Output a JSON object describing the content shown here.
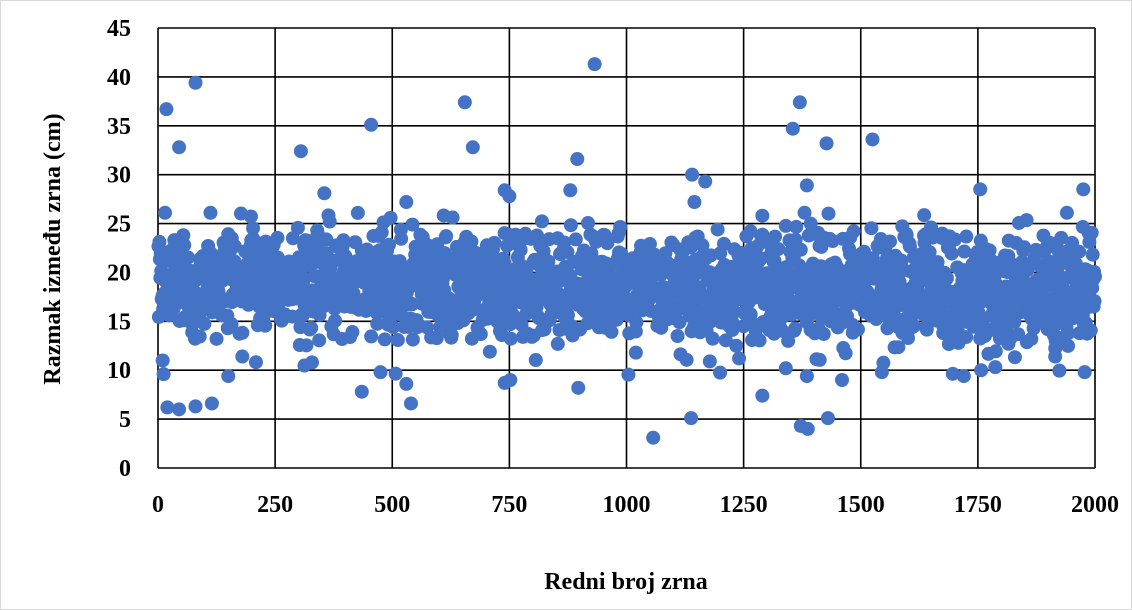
{
  "chart_data": {
    "type": "scatter",
    "title": "",
    "xlabel": "Redni broj zrna",
    "ylabel": "Razmak između zrna (cm)",
    "xlim": [
      0,
      2000
    ],
    "ylim": [
      0,
      45
    ],
    "x_ticks": [
      0,
      250,
      500,
      750,
      1000,
      1250,
      1500,
      1750,
      2000
    ],
    "y_ticks": [
      0,
      5,
      10,
      15,
      20,
      25,
      30,
      35,
      40,
      45
    ],
    "grid": true,
    "legend": "none",
    "marker_color": "#4472c4",
    "n_points": 2000,
    "bulk_range": [
      13,
      24
    ],
    "outliers": [
      {
        "x": 18,
        "y": 36.7
      },
      {
        "x": 80,
        "y": 39.4
      },
      {
        "x": 45,
        "y": 32.8
      },
      {
        "x": 15,
        "y": 26.1
      },
      {
        "x": 10,
        "y": 11.0
      },
      {
        "x": 12,
        "y": 9.6
      },
      {
        "x": 20,
        "y": 6.2
      },
      {
        "x": 45,
        "y": 6.0
      },
      {
        "x": 80,
        "y": 6.3
      },
      {
        "x": 115,
        "y": 6.6
      },
      {
        "x": 112,
        "y": 26.1
      },
      {
        "x": 305,
        "y": 32.4
      },
      {
        "x": 455,
        "y": 35.1
      },
      {
        "x": 355,
        "y": 28.1
      },
      {
        "x": 435,
        "y": 7.8
      },
      {
        "x": 530,
        "y": 8.6
      },
      {
        "x": 540,
        "y": 6.6
      },
      {
        "x": 475,
        "y": 9.8
      },
      {
        "x": 530,
        "y": 27.2
      },
      {
        "x": 655,
        "y": 37.4
      },
      {
        "x": 672,
        "y": 32.8
      },
      {
        "x": 740,
        "y": 28.4
      },
      {
        "x": 750,
        "y": 27.8
      },
      {
        "x": 740,
        "y": 8.7
      },
      {
        "x": 752,
        "y": 9.0
      },
      {
        "x": 932,
        "y": 41.3
      },
      {
        "x": 895,
        "y": 31.6
      },
      {
        "x": 880,
        "y": 28.4
      },
      {
        "x": 897,
        "y": 8.2
      },
      {
        "x": 1057,
        "y": 3.1
      },
      {
        "x": 1140,
        "y": 30.0
      },
      {
        "x": 1145,
        "y": 27.2
      },
      {
        "x": 1168,
        "y": 29.3
      },
      {
        "x": 1138,
        "y": 5.1
      },
      {
        "x": 1290,
        "y": 7.4
      },
      {
        "x": 1355,
        "y": 34.7
      },
      {
        "x": 1370,
        "y": 37.4
      },
      {
        "x": 1385,
        "y": 28.9
      },
      {
        "x": 1380,
        "y": 26.1
      },
      {
        "x": 1372,
        "y": 4.3
      },
      {
        "x": 1387,
        "y": 4.0
      },
      {
        "x": 1427,
        "y": 33.2
      },
      {
        "x": 1430,
        "y": 5.1
      },
      {
        "x": 1460,
        "y": 9.0
      },
      {
        "x": 1525,
        "y": 33.6
      },
      {
        "x": 1545,
        "y": 9.8
      },
      {
        "x": 1720,
        "y": 9.4
      },
      {
        "x": 1755,
        "y": 28.5
      },
      {
        "x": 1757,
        "y": 10.0
      },
      {
        "x": 1975,
        "y": 28.5
      },
      {
        "x": 1978,
        "y": 9.8
      },
      {
        "x": 1385,
        "y": 9.4
      },
      {
        "x": 1290,
        "y": 25.8
      },
      {
        "x": 1650,
        "y": 24.6
      },
      {
        "x": 1940,
        "y": 26.1
      },
      {
        "x": 1340,
        "y": 10.2
      },
      {
        "x": 1915,
        "y": 11.4
      },
      {
        "x": 1020,
        "y": 11.8
      },
      {
        "x": 180,
        "y": 11.4
      },
      {
        "x": 150,
        "y": 9.4
      }
    ]
  }
}
